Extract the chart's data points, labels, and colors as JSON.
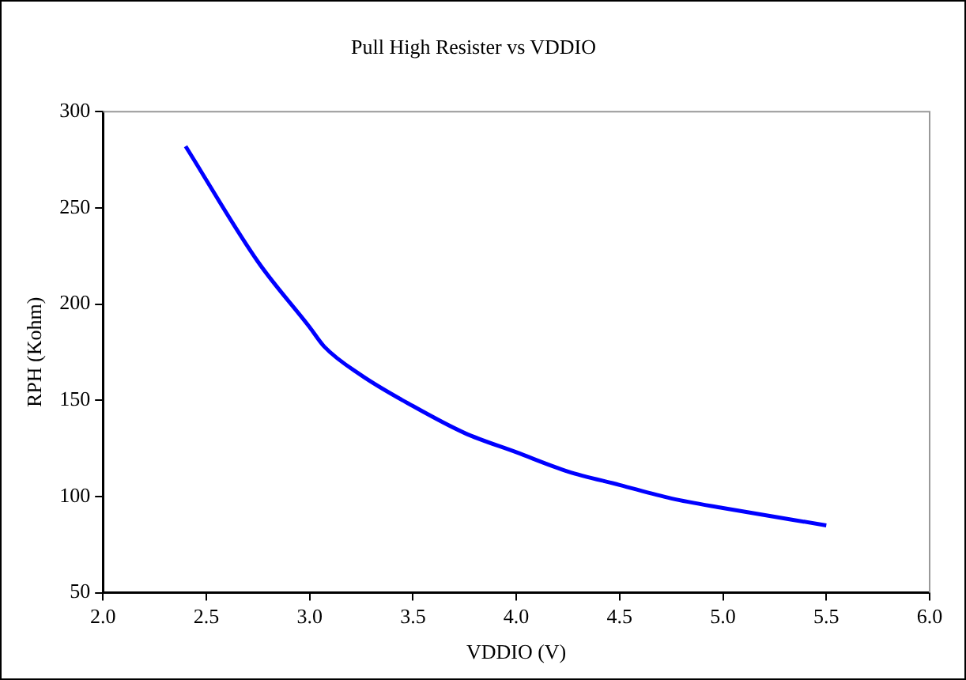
{
  "chart_data": {
    "type": "line",
    "title": "Pull High Resister vs VDDIO",
    "xlabel": "VDDIO (V)",
    "ylabel": "RPH (Kohm)",
    "x": [
      2.4,
      2.75,
      3.0,
      3.07,
      3.25,
      3.5,
      3.75,
      4.0,
      4.25,
      4.5,
      4.75,
      5.0,
      5.5
    ],
    "series": [
      {
        "color": "#0000ff",
        "values": [
          282,
          222,
          188,
          178,
          163,
          147,
          133,
          123,
          113,
          106,
          99,
          94,
          85
        ]
      }
    ],
    "xlim": [
      2,
      6
    ],
    "xticks": [
      {
        "value": 2,
        "label": "2.0"
      },
      2.5,
      {
        "value": 3,
        "label": "3.0"
      },
      3.5,
      {
        "value": 4,
        "label": "4.0"
      },
      4.5,
      {
        "value": 5,
        "label": "5.0"
      },
      5.5,
      {
        "value": 6,
        "label": "6.0"
      }
    ],
    "ylim": [
      50,
      300
    ],
    "yticks": [
      50,
      100,
      150,
      200,
      250,
      300
    ],
    "grid": false,
    "legend": false,
    "marker": "none",
    "line_style": "solid"
  }
}
